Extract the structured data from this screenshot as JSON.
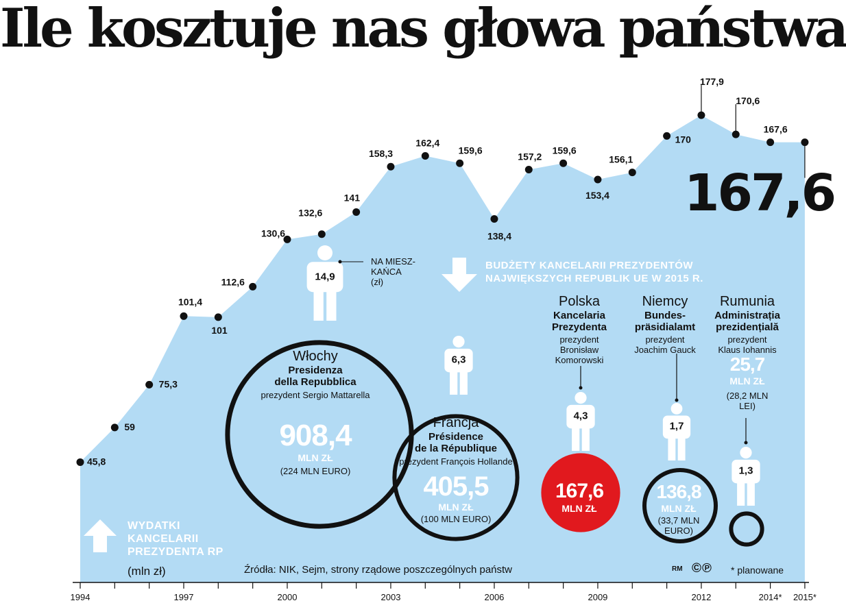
{
  "title": "Ile kosztuje nas głowa państwa",
  "colors": {
    "area": "#b3dbf4",
    "dark": "#111111",
    "accent_red": "#e1191e",
    "white": "#ffffff"
  },
  "headline_value": "167,6",
  "chart_data": {
    "type": "area",
    "x": [
      1994,
      1995,
      1996,
      1997,
      1998,
      1999,
      2000,
      2001,
      2002,
      2003,
      2004,
      2005,
      2006,
      2007,
      2008,
      2009,
      2010,
      2011,
      2012,
      2013,
      2014,
      2015
    ],
    "values": [
      45.8,
      59,
      75.3,
      101.4,
      101,
      112.6,
      130.6,
      132.6,
      141,
      158.3,
      162.4,
      159.6,
      138.4,
      157.2,
      159.6,
      153.4,
      156.1,
      170,
      177.9,
      170.6,
      167.6,
      167.6
    ],
    "point_labels": [
      "45,8",
      "59",
      "75,3",
      "101,4",
      "101",
      "112,6",
      "130,6",
      "132,6",
      "141",
      "158,3",
      "162,4",
      "159,6",
      "138,4",
      "157,2",
      "159,6",
      "153,4",
      "156,1",
      "170",
      "177,9",
      "170,6",
      "167,6",
      ""
    ],
    "x_tick_labels": [
      "1994",
      "",
      "",
      "1997",
      "",
      "",
      "2000",
      "",
      "",
      "2003",
      "",
      "",
      "2006",
      "",
      "",
      "2009",
      "",
      "",
      "2012",
      "",
      "2014*",
      "2015*"
    ],
    "ylabel": "(mln zł)",
    "series_label": "WYDATKI KANCELARII PREZYDENTA RP",
    "planned_years": [
      2014,
      2015
    ]
  },
  "comparison": {
    "heading_line1": "BUDŻETY KANCELARII PREZYDENTÓW",
    "heading_line2": "NAJWIĘKSZYCH REPUBLIK UE W 2015 R.",
    "per_capita_note": [
      "NA MIESZ-",
      "KAŃCA",
      "(zł)"
    ],
    "countries": [
      {
        "country": "Włochy",
        "office": [
          "Presidenza",
          "della Repubblica"
        ],
        "president": [
          "prezydent Sergio Mattarella"
        ],
        "budget_mln_zl": 908.4,
        "budget": "908,4",
        "unit": "MLN ZŁ",
        "local": "(224 MLN EURO)",
        "per_capita": "14,9"
      },
      {
        "country": "Francja",
        "office": [
          "Présidence",
          "de la République"
        ],
        "president": [
          "prezydent François Hollande"
        ],
        "budget_mln_zl": 405.5,
        "budget": "405,5",
        "unit": "MLN ZŁ",
        "local": "(100 MLN EURO)",
        "per_capita": "6,3"
      },
      {
        "country": "Polska",
        "office": [
          "Kancelaria",
          "Prezydenta"
        ],
        "president": [
          "prezydent",
          "Bronisław",
          "Komorowski"
        ],
        "budget_mln_zl": 167.6,
        "budget": "167,6",
        "unit": "MLN ZŁ",
        "local": "",
        "per_capita": "4,3"
      },
      {
        "country": "Niemcy",
        "office": [
          "Bundes-",
          "präsidialamt"
        ],
        "president": [
          "prezydent",
          "Joachim Gauck"
        ],
        "budget_mln_zl": 136.8,
        "budget": "136,8",
        "unit": "MLN ZŁ",
        "local": "(33,7 MLN EURO)",
        "per_capita": "1,7"
      },
      {
        "country": "Rumunia",
        "office": [
          "Administrația",
          "prezidențială"
        ],
        "president": [
          "prezydent",
          "Klaus Iohannis"
        ],
        "budget_mln_zl": 25.7,
        "budget": "25,7",
        "unit": "MLN ZŁ",
        "local": "(28,2 MLN LEI)",
        "per_capita": "1,3"
      }
    ]
  },
  "footer": {
    "source": "Źródła: NIK, Sejm, strony rządowe poszczególnych państw",
    "author": "RM",
    "copyright": "©℗",
    "planned_note": "* planowane"
  }
}
